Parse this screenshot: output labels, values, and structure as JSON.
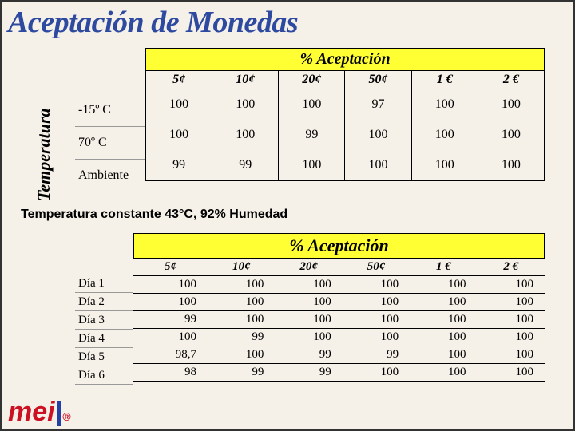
{
  "title": "Aceptación de Monedas",
  "vertical_label": "Temperatura",
  "table1": {
    "header": "% Aceptación",
    "columns": [
      "5¢",
      "10¢",
      "20¢",
      "50¢",
      "1 €",
      "2 €"
    ],
    "row_labels": [
      "-15º C",
      "70º C",
      "Ambiente"
    ],
    "rows": [
      [
        "100",
        "100",
        "100",
        "97",
        "100",
        "100"
      ],
      [
        "100",
        "100",
        "99",
        "100",
        "100",
        "100"
      ],
      [
        "99",
        "99",
        "100",
        "100",
        "100",
        "100"
      ]
    ],
    "header_bg": "#ffff33"
  },
  "mid_caption": "Temperatura constante 43°C,  92% Humedad",
  "table2": {
    "header": "% Aceptación",
    "columns": [
      "5¢",
      "10¢",
      "20¢",
      "50¢",
      "1 €",
      "2 €"
    ],
    "row_labels": [
      "Día 1",
      "Día 2",
      "Día 3",
      "Día 4",
      "Día 5",
      "Día 6"
    ],
    "rows": [
      [
        "100",
        "100",
        "100",
        "100",
        "100",
        "100"
      ],
      [
        "100",
        "100",
        "100",
        "100",
        "100",
        "100"
      ],
      [
        "99",
        "100",
        "100",
        "100",
        "100",
        "100"
      ],
      [
        "100",
        "99",
        "100",
        "100",
        "100",
        "100"
      ],
      [
        "98,7",
        "100",
        "99",
        "99",
        "100",
        "100"
      ],
      [
        "98",
        "99",
        "99",
        "100",
        "100",
        "100"
      ]
    ],
    "header_bg": "#ffff33"
  },
  "logo": {
    "text": "mei",
    "trademark": "®"
  },
  "colors": {
    "page_bg": "#f5f0e8",
    "title_color": "#2e4aa0",
    "logo_red": "#cc1122",
    "logo_blue": "#2340a5"
  }
}
